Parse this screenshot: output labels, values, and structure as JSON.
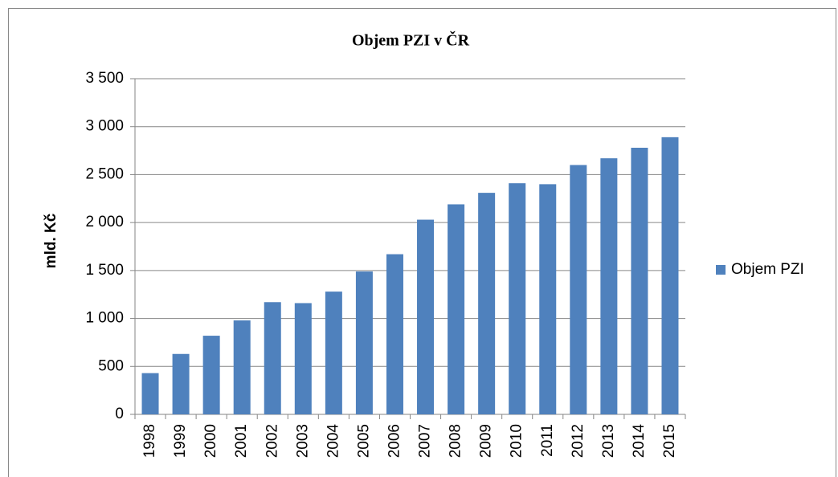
{
  "chart_data": {
    "type": "bar",
    "title": "Objem PZI v ČR",
    "y_label": "mld. Kč",
    "categories": [
      "1998",
      "1999",
      "2000",
      "2001",
      "2002",
      "2003",
      "2004",
      "2005",
      "2006",
      "2007",
      "2008",
      "2009",
      "2010",
      "2011",
      "2012",
      "2013",
      "2014",
      "2015"
    ],
    "series": [
      {
        "name": "Objem PZI",
        "color": "#4f81bd",
        "values": [
          430,
          630,
          820,
          980,
          1170,
          1160,
          1280,
          1490,
          1670,
          2030,
          2190,
          2310,
          2410,
          2400,
          2600,
          2670,
          2780,
          2890
        ]
      }
    ],
    "ylim": [
      0,
      3500
    ],
    "yticks": [
      0,
      500,
      {
        "value": 1000,
        "label": "1 000"
      },
      {
        "value": 1500,
        "label": "1 500"
      },
      {
        "value": 2000,
        "label": "2 000"
      },
      {
        "value": 2500,
        "label": "2 500"
      },
      {
        "value": 3000,
        "label": "3 000"
      },
      {
        "value": 3500,
        "label": "3 500"
      }
    ],
    "grid": true,
    "legend": "right"
  }
}
